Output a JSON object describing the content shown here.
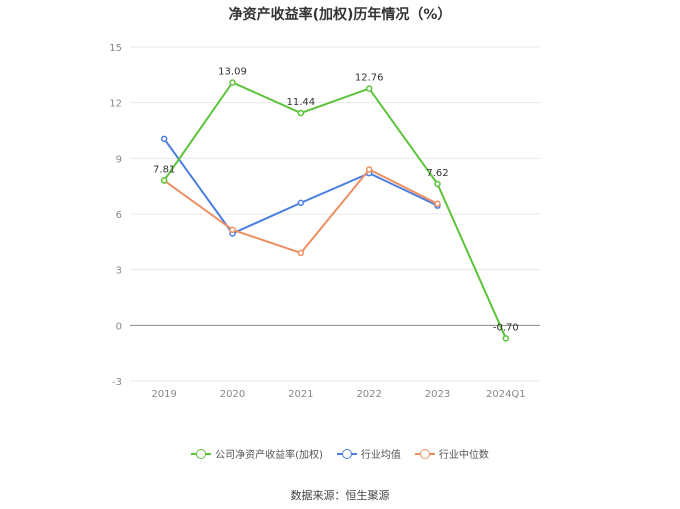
{
  "chart_data": {
    "type": "line",
    "title": "净资产收益率(加权)历年情况（%）",
    "categories": [
      "2019",
      "2020",
      "2021",
      "2022",
      "2023",
      "2024Q1"
    ],
    "ylim": [
      -3,
      15
    ],
    "yticks": [
      "15",
      "12",
      "9",
      "6",
      "3",
      "0",
      "-3"
    ],
    "series": [
      {
        "name": "公司净资产收益率(加权)",
        "color": "#5cc33b",
        "values": [
          7.81,
          13.09,
          11.44,
          12.76,
          7.62,
          -0.7
        ],
        "labels": [
          "7.81",
          "13.09",
          "11.44",
          "12.76",
          "7.62",
          "-0.70"
        ]
      },
      {
        "name": "行业均值",
        "color": "#4a7fe0",
        "values": [
          10.05,
          4.95,
          6.6,
          8.2,
          6.45,
          null
        ]
      },
      {
        "name": "行业中位数",
        "color": "#ee8f62",
        "values": [
          7.8,
          5.15,
          3.9,
          8.4,
          6.55,
          null
        ]
      }
    ],
    "grid": true,
    "legend_position": "bottom"
  },
  "source": "数据来源：恒生聚源"
}
